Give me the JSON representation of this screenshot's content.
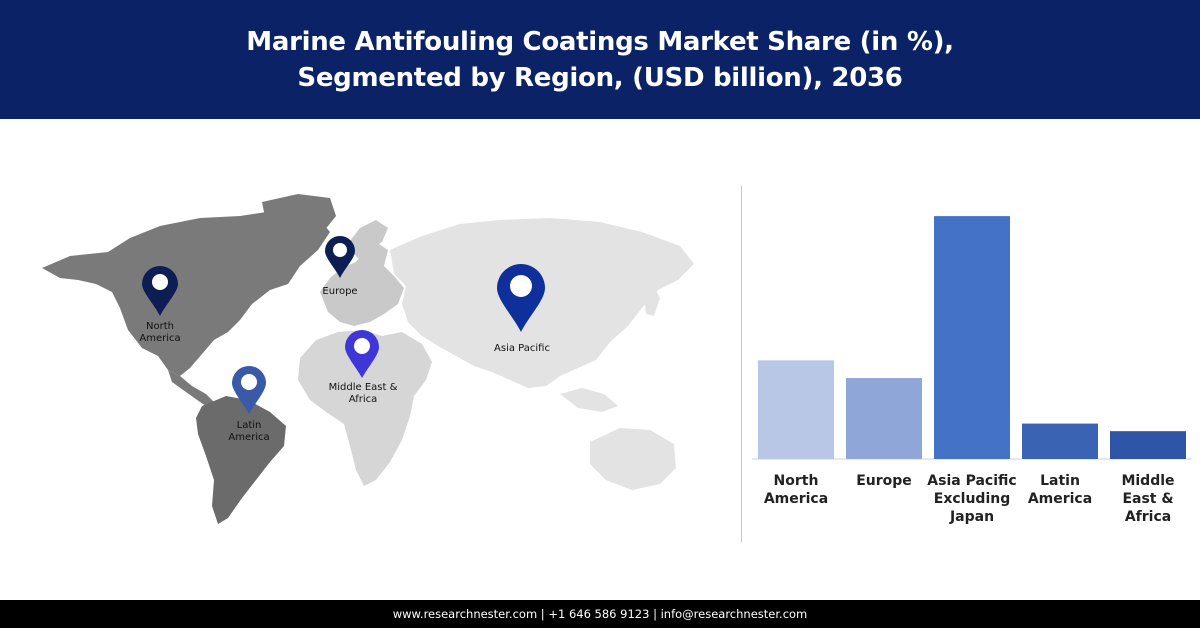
{
  "header": {
    "title_line1": "Marine Antifouling Coatings Market Share (in %),",
    "title_line2": "Segmented by Region, (USD billion), 2036"
  },
  "map": {
    "pins": [
      {
        "id": "north-america",
        "label": "North America",
        "color": "#0d1e54"
      },
      {
        "id": "europe",
        "label": "Europe",
        "color": "#0d1e54"
      },
      {
        "id": "asia-pacific",
        "label": "Asia Pacific",
        "color": "#0f2f9a"
      },
      {
        "id": "middle-east-africa",
        "label": "Middle East & Africa",
        "color": "#3f36d8"
      },
      {
        "id": "latin-america",
        "label": "Latin America",
        "color": "#3a5aa8"
      }
    ]
  },
  "chart_data": {
    "type": "bar",
    "title": "Marine Antifouling Coatings Market Share (in %), Segmented by Region, (USD billion), 2036",
    "categories": [
      "North America",
      "Europe",
      "Asia Pacific Excluding Japan",
      "Latin America",
      "Middle East & Africa"
    ],
    "values": [
      39,
      32,
      96,
      14,
      11
    ],
    "colors": [
      "#b9c7e6",
      "#8fa6d8",
      "#4472c4",
      "#3a63b3",
      "#2f55a6"
    ],
    "ylim": [
      0,
      100
    ],
    "grid": false,
    "legend": "none"
  },
  "footer": {
    "text": "www.researchnester.com  | +1 646 586 9123 | info@researchnester.com"
  }
}
